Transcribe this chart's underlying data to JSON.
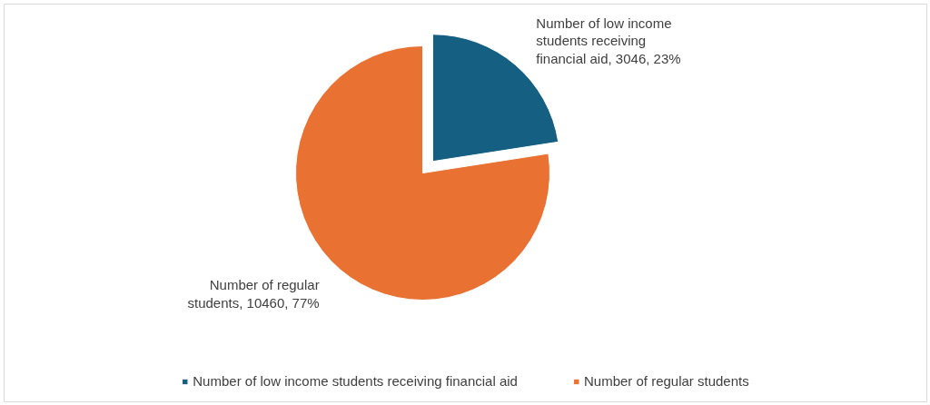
{
  "chart_data": {
    "type": "pie",
    "categories": [
      "Number of low income students receiving financial aid",
      "Number of regular students"
    ],
    "values": [
      3046,
      10460
    ],
    "colors": [
      "#156082",
      "#e97132"
    ],
    "value_labels": [
      "Number of low income students receiving financial aid, 3046, 23%",
      "Number of regular students, 10460, 77%"
    ],
    "legend": "bottom"
  }
}
